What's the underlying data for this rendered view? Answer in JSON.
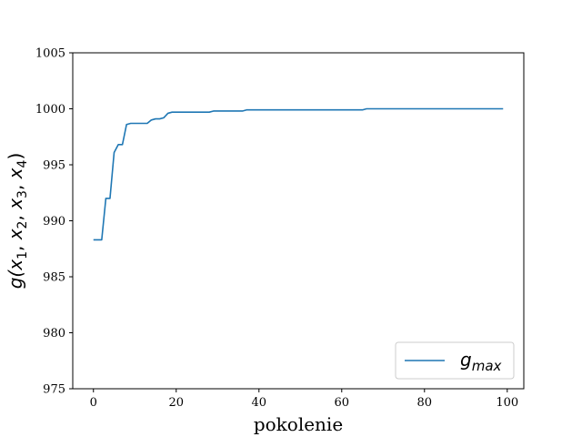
{
  "chart_data": {
    "type": "line",
    "xlabel": "pokolenie",
    "ylabel": "g(x1, x2, x3, x4)",
    "ylabel_parts": {
      "func": "g(",
      "vars": [
        {
          "base": "x",
          "sub": "1",
          "sep": ", "
        },
        {
          "base": "x",
          "sub": "2",
          "sep": ", "
        },
        {
          "base": "x",
          "sub": "3",
          "sep": ", "
        },
        {
          "base": "x",
          "sub": "4",
          "sep": ")"
        }
      ]
    },
    "xlim": [
      -5,
      104
    ],
    "ylim": [
      975,
      1005
    ],
    "xticks": [
      0,
      20,
      40,
      60,
      80,
      100
    ],
    "yticks": [
      975,
      980,
      985,
      990,
      995,
      1000,
      1005
    ],
    "grid": false,
    "legend_position": "lower-right",
    "series": [
      {
        "name": "g_max",
        "legend_base": "g",
        "legend_sub": "max",
        "color": "#1f77b4",
        "x": [
          0,
          1,
          2,
          3,
          4,
          5,
          6,
          7,
          8,
          9,
          10,
          11,
          12,
          13,
          14,
          15,
          16,
          17,
          18,
          19,
          20,
          21,
          22,
          23,
          24,
          25,
          26,
          27,
          28,
          29,
          30,
          31,
          32,
          33,
          34,
          35,
          36,
          37,
          38,
          39,
          40,
          45,
          50,
          55,
          60,
          65,
          66,
          67,
          70,
          75,
          80,
          85,
          90,
          95,
          99
        ],
        "y": [
          988.3,
          988.3,
          988.3,
          992.0,
          992.0,
          996.1,
          996.8,
          996.8,
          998.6,
          998.7,
          998.7,
          998.7,
          998.7,
          998.7,
          999.0,
          999.1,
          999.1,
          999.2,
          999.6,
          999.7,
          999.7,
          999.7,
          999.7,
          999.7,
          999.7,
          999.7,
          999.7,
          999.7,
          999.7,
          999.8,
          999.8,
          999.8,
          999.8,
          999.8,
          999.8,
          999.8,
          999.8,
          999.9,
          999.9,
          999.9,
          999.9,
          999.9,
          999.9,
          999.9,
          999.9,
          999.9,
          1000.0,
          1000.0,
          1000.0,
          1000.0,
          1000.0,
          1000.0,
          1000.0,
          1000.0,
          1000.0
        ]
      }
    ]
  }
}
